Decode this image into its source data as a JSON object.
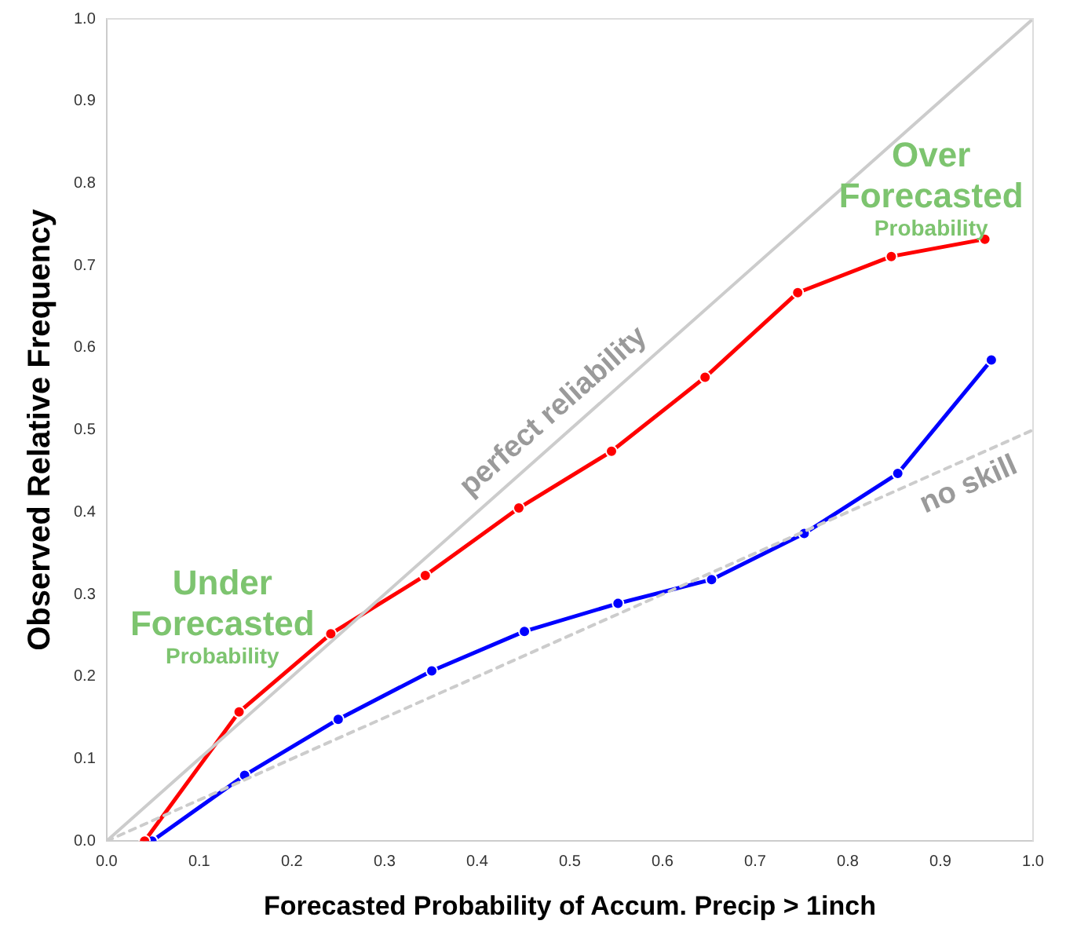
{
  "chart_data": {
    "type": "line",
    "xlabel": "Forecasted Probability of Accum. Precip > 1inch",
    "ylabel": "Observed Relative Frequency",
    "xlim": [
      0,
      1
    ],
    "ylim": [
      0,
      1
    ],
    "xticks": [
      {
        "value": 0,
        "label": "0.0"
      },
      0.1,
      0.2,
      0.3,
      0.4,
      0.5,
      0.6,
      0.7,
      0.8,
      0.9,
      {
        "value": 1,
        "label": "1.0"
      }
    ],
    "yticks": [
      {
        "value": 0,
        "label": "0.0"
      },
      0.1,
      0.2,
      0.3,
      0.4,
      0.5,
      0.6,
      0.7,
      0.8,
      0.9,
      {
        "value": 1,
        "label": "1.0"
      }
    ],
    "grid": false,
    "legend": false,
    "marker": "circle",
    "line_style": "solid",
    "series": [
      {
        "name": "perfect reliability",
        "color": "#cccccc",
        "x": [
          0,
          1
        ],
        "values": [
          0,
          1
        ],
        "marker": "none"
      },
      {
        "name": "no skill",
        "color": "#cccccc",
        "x": [
          0,
          1
        ],
        "values": [
          0,
          0.5
        ],
        "marker": "none",
        "line_style": "dotted"
      },
      {
        "color": "#ff0000",
        "x": [
          0.041,
          0.143,
          0.242,
          0.344,
          0.445,
          0.545,
          0.646,
          0.746,
          0.847,
          0.948
        ],
        "values": [
          0,
          0.157,
          0.252,
          0.323,
          0.405,
          0.474,
          0.564,
          0.667,
          0.711,
          0.732
        ]
      },
      {
        "color": "#0000ff",
        "x": [
          0.049,
          0.149,
          0.25,
          0.351,
          0.451,
          0.552,
          0.653,
          0.753,
          0.854,
          0.955
        ],
        "values": [
          0,
          0.08,
          0.148,
          0.207,
          0.255,
          0.289,
          0.318,
          0.374,
          0.447,
          0.585
        ]
      }
    ],
    "annotations": [
      "Under Forecasted Probability",
      "Over Forecasted Probability"
    ]
  }
}
